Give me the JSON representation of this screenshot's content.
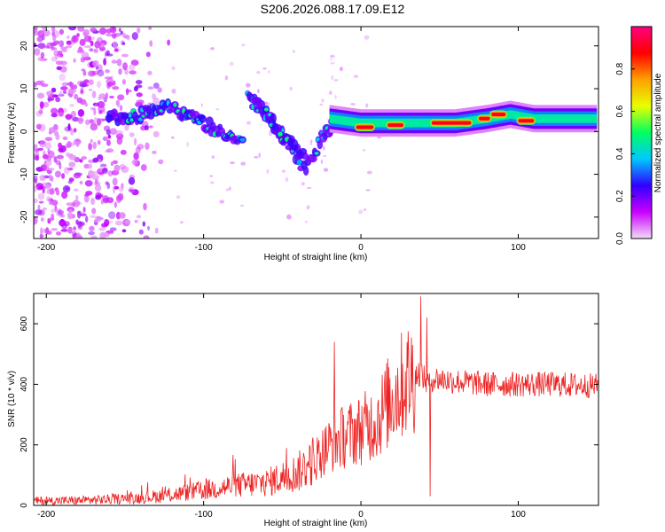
{
  "figure_title": "S206.2026.088.17.09.E12",
  "chart_data": [
    {
      "type": "heatmap",
      "title": "S206.2026.088.17.09.E12",
      "xlabel": "Height of straight line (km)",
      "ylabel": "Frequency (Hz)",
      "xlim": [
        -208,
        151
      ],
      "ylim": [
        -25,
        24.5
      ],
      "x_ticks": [
        -200,
        -100,
        0,
        100
      ],
      "x_tick_labels": [
        "-200",
        "-100",
        "0",
        "100"
      ],
      "y_ticks": [
        -20,
        -10,
        0,
        10,
        20
      ],
      "y_tick_labels": [
        "-20",
        "-10",
        "0",
        "10",
        "20"
      ],
      "colorbar": {
        "label": "Normalized spectral amplitude",
        "range": [
          0,
          1
        ],
        "ticks": [
          0,
          0.2,
          0.4,
          0.6,
          0.8
        ],
        "tick_labels": [
          "0.0",
          "0.2",
          "0.4",
          "0.6",
          "0.8"
        ],
        "colors": [
          "#f4dcf8",
          "#c800ff",
          "#3000ff",
          "#00c8ff",
          "#00ff60",
          "#e8ff00",
          "#ffa000",
          "#ff0000",
          "#ff0080"
        ]
      },
      "ridges": [
        {
          "name": "main band",
          "x": [
            -160,
            -140,
            -125,
            -110,
            -95,
            -85,
            -75
          ],
          "y": [
            3,
            4,
            6,
            4,
            1,
            -1,
            -3
          ]
        },
        {
          "name": "descending branch 1",
          "x": [
            -72,
            -62,
            -52,
            -44,
            -38,
            -35
          ],
          "y": [
            8,
            5,
            0,
            -3,
            -5,
            -7
          ]
        },
        {
          "name": "descending branch 2",
          "x": [
            -70,
            -60,
            -50,
            -42,
            -38
          ],
          "y": [
            7,
            4,
            -1,
            -5,
            -8
          ]
        },
        {
          "name": "rising branch",
          "x": [
            -36,
            -30,
            -24,
            -18,
            -10
          ],
          "y": [
            -9,
            -5,
            -1,
            2,
            3
          ]
        },
        {
          "name": "steady band",
          "x": [
            -20,
            0,
            20,
            40,
            60,
            80,
            95,
            110,
            150
          ],
          "y": [
            3,
            2,
            2,
            2,
            2,
            3,
            4,
            3,
            3
          ]
        }
      ],
      "bright_segments": [
        {
          "x_range": [
            -3,
            8
          ],
          "y": 1
        },
        {
          "x_range": [
            17,
            27
          ],
          "y": 1.5
        },
        {
          "x_range": [
            45,
            70
          ],
          "y": 2
        },
        {
          "x_range": [
            75,
            82
          ],
          "y": 3
        },
        {
          "x_range": [
            83,
            92
          ],
          "y": 4
        },
        {
          "x_range": [
            100,
            110
          ],
          "y": 2.5
        }
      ],
      "scatter_noise": {
        "x_range": [
          -208,
          -120
        ],
        "y_range": [
          -25,
          24.5
        ]
      }
    },
    {
      "type": "line",
      "xlabel": "Height of straight line (km)",
      "ylabel": "SNR (10 * v/v)",
      "xlim": [
        -208,
        151
      ],
      "ylim": [
        0,
        700
      ],
      "x_ticks": [
        -200,
        -100,
        0,
        100
      ],
      "x_tick_labels": [
        "-200",
        "-100",
        "0",
        "100"
      ],
      "y_ticks": [
        0,
        200,
        400,
        600
      ],
      "y_tick_labels": [
        "0",
        "200",
        "400",
        "600"
      ],
      "series": [
        {
          "name": "SNR",
          "color": "#ee2222",
          "envelope_x": [
            -208,
            -180,
            -160,
            -140,
            -120,
            -100,
            -80,
            -60,
            -40,
            -30,
            -20,
            -10,
            0,
            10,
            20,
            30,
            38,
            42,
            46,
            60,
            80,
            100,
            120,
            151
          ],
          "envelope_mean": [
            15,
            16,
            20,
            25,
            35,
            50,
            65,
            75,
            110,
            150,
            200,
            230,
            250,
            280,
            360,
            420,
            440,
            400,
            420,
            410,
            400,
            400,
            400,
            395
          ],
          "peaks": [
            {
              "x": -17,
              "y": 540
            },
            {
              "x": 38,
              "y": 690
            },
            {
              "x": 42,
              "y": 620
            },
            {
              "x": 44,
              "y": 30
            }
          ]
        }
      ]
    }
  ]
}
